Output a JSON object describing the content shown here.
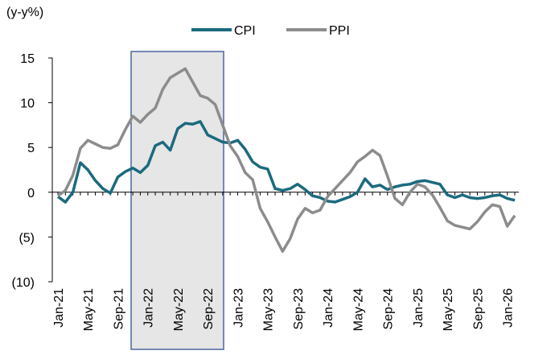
{
  "chart_data": {
    "type": "line",
    "y_axis_label": "(y-y%)",
    "categories": [
      "Jan-21",
      null,
      null,
      null,
      "May-21",
      null,
      null,
      null,
      "Sep-21",
      null,
      null,
      null,
      "Jan-22",
      null,
      null,
      null,
      "May-22",
      null,
      null,
      null,
      "Sep-22",
      null,
      null,
      null,
      "Jan-23",
      null,
      null,
      null,
      "May-23",
      null,
      null,
      null,
      "Sep-23",
      null,
      null,
      null,
      "Jan-24",
      null,
      null,
      null,
      "May-24",
      null,
      null,
      null,
      "Sep-24",
      null,
      null,
      null,
      "Jan-25",
      null,
      null,
      null,
      "May-25",
      null,
      null,
      null,
      "Sep-25",
      null,
      null,
      null,
      "Jan-26",
      null
    ],
    "series": [
      {
        "name": "CPI",
        "color": "#1b6a7e",
        "values": [
          -0.5,
          -1.1,
          0,
          3.3,
          2.5,
          1.3,
          0.4,
          -0.1,
          1.7,
          2.3,
          2.7,
          2.2,
          3.0,
          5.2,
          5.6,
          4.7,
          7.1,
          7.7,
          7.6,
          7.9,
          6.4,
          6.0,
          5.6,
          5.5,
          5.8,
          4.8,
          3.4,
          2.8,
          2.6,
          0.4,
          0.2,
          0.4,
          0.9,
          0.3,
          -0.4,
          -0.6,
          -1.0,
          -1.1,
          -0.8,
          -0.5,
          0.0,
          1.5,
          0.6,
          0.8,
          0.3,
          0.6,
          0.8,
          0.9,
          1.2,
          1.3,
          1.1,
          0.9,
          -0.3,
          -0.6,
          -0.3,
          -0.6,
          -0.7,
          -0.6,
          -0.4,
          -0.3,
          -0.7,
          -0.9
        ]
      },
      {
        "name": "PPI",
        "color": "#8c8c8c",
        "values": [
          -0.4,
          0.2,
          1.9,
          4.9,
          5.8,
          5.4,
          5.0,
          4.9,
          5.3,
          7.0,
          8.5,
          7.8,
          8.7,
          9.4,
          11.5,
          12.8,
          13.3,
          13.8,
          12.3,
          10.8,
          10.5,
          9.8,
          7.5,
          5.2,
          4.0,
          2.2,
          1.4,
          -1.8,
          -3.3,
          -5.0,
          -6.6,
          -5.2,
          -3.0,
          -1.8,
          -2.3,
          -2.0,
          -0.5,
          0.4,
          1.3,
          2.2,
          3.4,
          4.0,
          4.7,
          4.1,
          1.8,
          -0.7,
          -1.4,
          0.0,
          0.9,
          0.6,
          -0.3,
          -1.7,
          -3.2,
          -3.7,
          -3.9,
          -4.1,
          -3.3,
          -2.2,
          -1.4,
          -1.6,
          -3.8,
          -2.6
        ]
      }
    ],
    "ylim": [
      -10,
      15
    ],
    "yticks": [
      {
        "value": -10,
        "label": "(10)"
      },
      {
        "value": -5,
        "label": "(5)"
      },
      0,
      5,
      10,
      15
    ],
    "grid": false,
    "legend": "top"
  }
}
